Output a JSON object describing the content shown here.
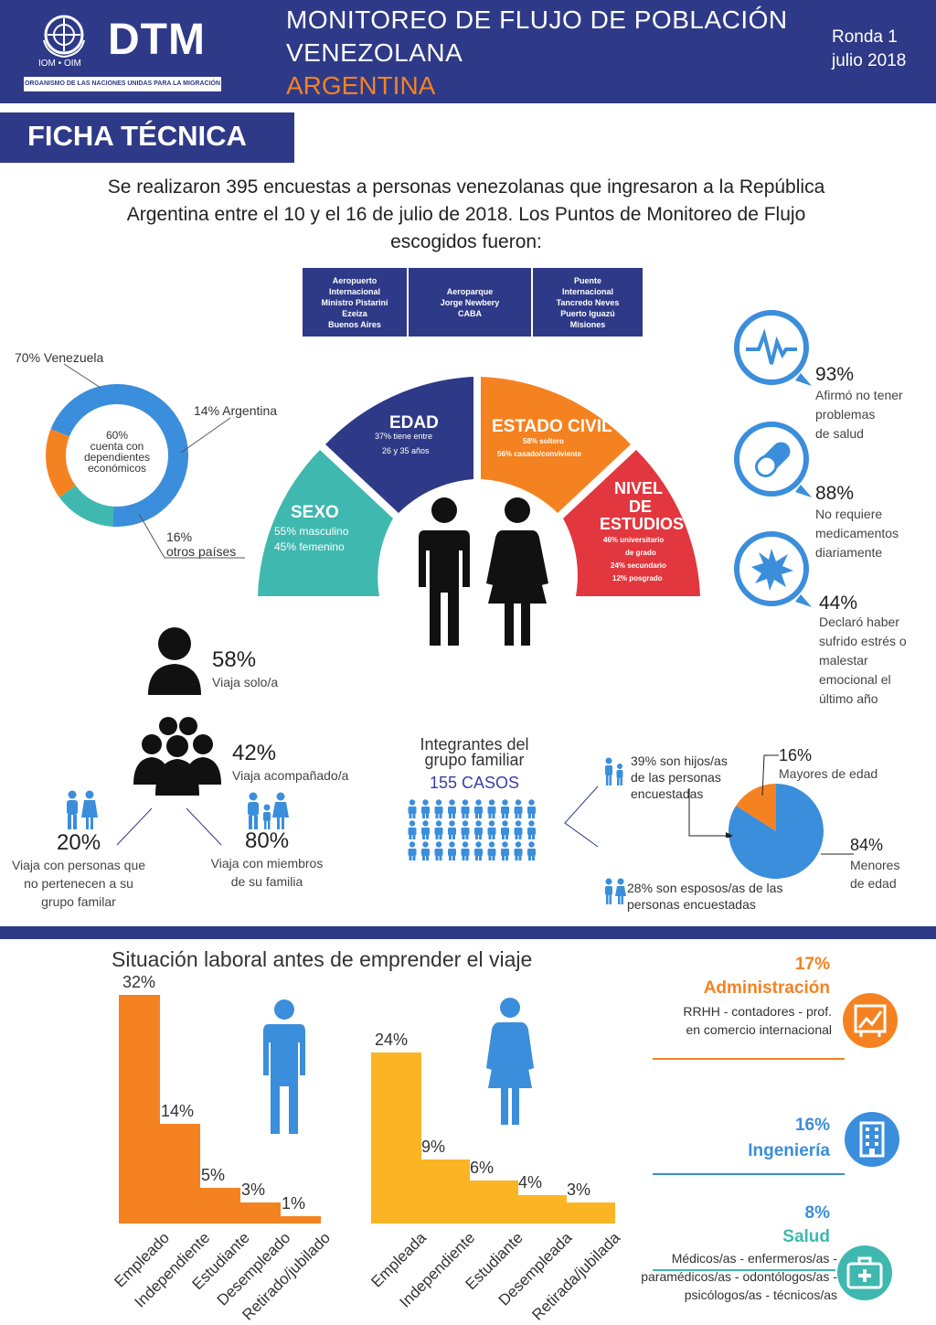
{
  "header": {
    "org_abbrev": "IOM • OIM",
    "logo": "DTM",
    "org_name": "ORGANISMO DE LAS NACIONES UNIDAS PARA LA MIGRACIÓN",
    "title_line1": "MONITOREO DE FLUJO DE POBLACIÓN",
    "title_line2": "VENEZOLANA",
    "country": "ARGENTINA",
    "round": "Ronda 1",
    "date": "julio 2018"
  },
  "section_title": "FICHA TÉCNICA",
  "intro": "Se realizaron 395 encuestas a personas venezolanas que ingresaron a la República Argentina entre el 10 y el 16 de julio de 2018. Los Puntos de Monitoreo de Flujo escogidos fueron:",
  "monitoring_points": [
    [
      "Aeropuerto",
      "Internacional",
      "Ministro Pistarini",
      "Ezeiza",
      "Buenos Aires"
    ],
    [
      "Aeroparque",
      "Jorge Newbery",
      "CABA"
    ],
    [
      "Puente",
      "Internacional",
      "Tancredo Neves",
      "Puerto Iguazú",
      "Misiones"
    ]
  ],
  "donut": {
    "center_text": [
      "60%",
      "cuenta con",
      "dependientes",
      "económicos"
    ],
    "label_venezuela": "70% Venezuela",
    "label_argentina": "14% Argentina",
    "label_otros_1": "16%",
    "label_otros_2": "otros países",
    "values": [
      70,
      14,
      16
    ],
    "colors": [
      "#3b8edb",
      "#3fb8af",
      "#f58220"
    ]
  },
  "arc": {
    "sexo_title": "SEXO",
    "sexo_1": "55% masculino",
    "sexo_2": "45% femenino",
    "edad_title": "EDAD",
    "edad_1": "37% tiene entre",
    "edad_2": "26 y 35 años",
    "civil_title": "ESTADO CIVIL",
    "civil_1": "58% soltero",
    "civil_2": "56% casado/conviviente",
    "nivel_title_1": "NIVEL",
    "nivel_title_2": "DE",
    "nivel_title_3": "ESTUDIOS",
    "nivel_1": "46% universitario",
    "nivel_2": "de grado",
    "nivel_3": "24% secundario",
    "nivel_4": "12% posgrado"
  },
  "health": [
    {
      "pct": "93%",
      "lines": [
        "Afirmó no tener",
        "problemas",
        "de salud"
      ],
      "icon": "heartbeat-icon"
    },
    {
      "pct": "88%",
      "lines": [
        "No requiere",
        "medicamentos",
        "diariamente"
      ],
      "icon": "pill-icon"
    },
    {
      "pct": "44%",
      "lines": [
        "Declaró haber",
        "sufrido estrés o",
        "malestar",
        "emocional el",
        "último año"
      ],
      "icon": "burst-icon"
    }
  ],
  "travel": {
    "alone_pct": "58%",
    "alone_label": "Viaja solo/a",
    "group_pct": "42%",
    "group_label": "Viaja acompañado/a",
    "nonfamily_pct": "20%",
    "nonfamily_lines": [
      "Viaja con personas que",
      "no pertenecen a su",
      "grupo familar"
    ],
    "family_pct": "80%",
    "family_lines": [
      "Viaja con miembros",
      "de su familia"
    ]
  },
  "family_group": {
    "title_1": "Integrantes del",
    "title_2": "grupo familiar",
    "cases": "155 CASOS",
    "children_lines": [
      "39% son hijos/as",
      "de las personas",
      "encuestadas"
    ],
    "spouses_lines": [
      "28% son esposos/as de las",
      "personas encuestadas"
    ],
    "pie": {
      "values": [
        16,
        84
      ],
      "colors": [
        "#f58220",
        "#3b8edb"
      ]
    },
    "adults_pct": "16%",
    "adults_label": "Mayores de edad",
    "minors_pct": "84%",
    "minors_label_1": "Menores",
    "minors_label_2": "de edad"
  },
  "labor_title": "Situación laboral antes de emprender el viaje",
  "chart_data": [
    {
      "type": "bar",
      "series": [
        {
          "name": "",
          "values": [
            32,
            14,
            5,
            3,
            1
          ]
        }
      ],
      "categories": [
        "Empleado",
        "Independiente",
        "Estudiante",
        "Desempleado",
        "Retirado/jubilado"
      ],
      "value_labels": [
        "32%",
        "14%",
        "5%",
        "3%",
        "1%"
      ],
      "color": "#f58220",
      "ylim": [
        0,
        32
      ]
    },
    {
      "type": "bar",
      "series": [
        {
          "name": "",
          "values": [
            24,
            9,
            6,
            4,
            3
          ]
        }
      ],
      "categories": [
        "Empleada",
        "Independiente",
        "Estudiante",
        "Desempleada",
        "Retirada/jubilada"
      ],
      "value_labels": [
        "24%",
        "9%",
        "6%",
        "4%",
        "3%"
      ],
      "color": "#fbb424",
      "ylim": [
        0,
        32
      ]
    }
  ],
  "occupations": [
    {
      "pct": "17%",
      "title": "Administración",
      "desc": [
        "RRHH - contadores - prof.",
        "en comercio internacional"
      ],
      "icon": "chart-icon",
      "color": "#f58220"
    },
    {
      "pct": "16%",
      "title": "Ingeniería",
      "desc": [],
      "icon": "building-icon",
      "color": "#3b8edb"
    },
    {
      "pct": "8%",
      "title": "Salud",
      "desc": [
        "Médicos/as - enfermeros/as -",
        "paramédicos/as - odontólogos/as -",
        "psicólogos/as - técnicos/as"
      ],
      "icon": "medkit-icon",
      "color": "#3fb8af"
    }
  ]
}
